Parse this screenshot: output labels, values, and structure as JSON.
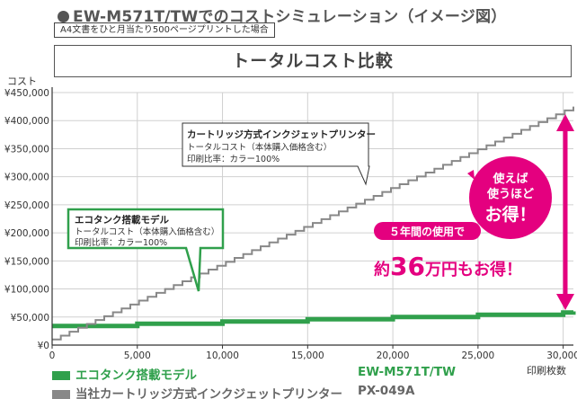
{
  "header": {
    "title": "EW-M571T/TWでのコストシミュレーション（イメージ図）"
  },
  "note": "A4文書をひと月当たり500ページプリントした場合",
  "chart_title": "トータルコスト比較",
  "chart_data": {
    "type": "line",
    "ylabel": "コスト",
    "xlabel": "印刷枚数",
    "xlim": [
      0,
      30600
    ],
    "ylim": [
      0,
      450000
    ],
    "x_ticks": [
      0,
      5000,
      10000,
      15000,
      20000,
      25000,
      30000
    ],
    "x_tick_labels": [
      "0",
      "5,000",
      "10,000",
      "15,000",
      "20,000",
      "25,000",
      "30,000"
    ],
    "y_ticks": [
      0,
      50000,
      100000,
      150000,
      200000,
      250000,
      300000,
      350000,
      400000,
      450000
    ],
    "y_tick_labels": [
      "¥0",
      "¥50,000",
      "¥100,000",
      "¥150,000",
      "¥200,000",
      "¥250,000",
      "¥300,000",
      "¥350,000",
      "¥400,000",
      "¥450,000"
    ],
    "grid": true,
    "series": [
      {
        "name": "エコタンク搭載モデル",
        "color": "#30a04c",
        "style": "step",
        "x": [
          0,
          5000,
          10000,
          15000,
          20000,
          25000,
          30000,
          30600
        ],
        "y": [
          34000,
          38000,
          42000,
          46000,
          50000,
          54000,
          58000,
          60000
        ]
      },
      {
        "name": "当社カートリッジ方式インクジェットプリンター",
        "color": "#888888",
        "style": "step",
        "x": [
          0,
          30600
        ],
        "y": [
          10000,
          425000
        ]
      }
    ]
  },
  "callout_cartridge": {
    "title": "カートリッジ方式インクジェットプリンター",
    "line1": "トータルコスト（本体購入価格含む）",
    "line2": "印刷比率：カラー100%"
  },
  "callout_eco": {
    "title": "エコタンク搭載モデル",
    "line1": "トータルコスト（本体購入価格含む）",
    "line2": "印刷比率：カラー100%"
  },
  "badge": {
    "line1": "使えば",
    "line2": "使うほど",
    "line3": "お得！"
  },
  "savings": {
    "banner": "５年間の使用で",
    "prefix": "約",
    "amount": "36",
    "suffix": "万円もお得！"
  },
  "legend": {
    "eco_label": "エコタンク搭載モデル",
    "eco_model": "EW-M571T/TW",
    "cart_label": "当社カートリッジ方式インクジェットプリンター",
    "cart_model": "PX-049A"
  },
  "colors": {
    "eco": "#30a04c",
    "cartridge": "#888888",
    "accent": "#e4007f"
  }
}
